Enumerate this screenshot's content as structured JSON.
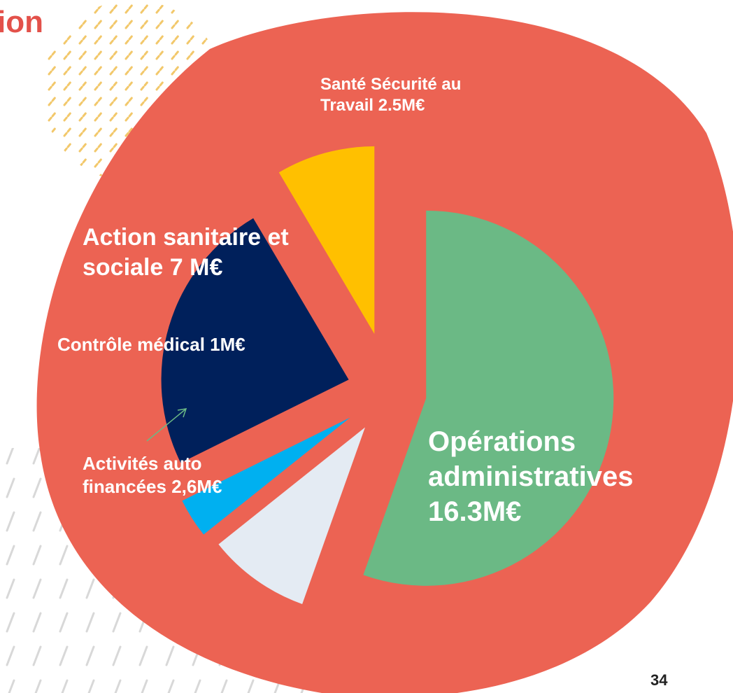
{
  "title": "ion",
  "page_number": "34",
  "chart_data": {
    "type": "pie",
    "categories": [
      "Opérations administratives",
      "Activités auto financées",
      "Contrôle médical",
      "Action sanitaire et sociale",
      "Santé Sécurité au Travail"
    ],
    "values": [
      16.3,
      2.6,
      1,
      7,
      2.5
    ],
    "value_labels": [
      "16.3M€",
      "2,6M€",
      "1M€",
      "7 M€",
      "2.5M€"
    ],
    "colors": [
      "#6bb985",
      "#e4ebf3",
      "#00b0f0",
      "#00205b",
      "#ffc000"
    ]
  }
}
